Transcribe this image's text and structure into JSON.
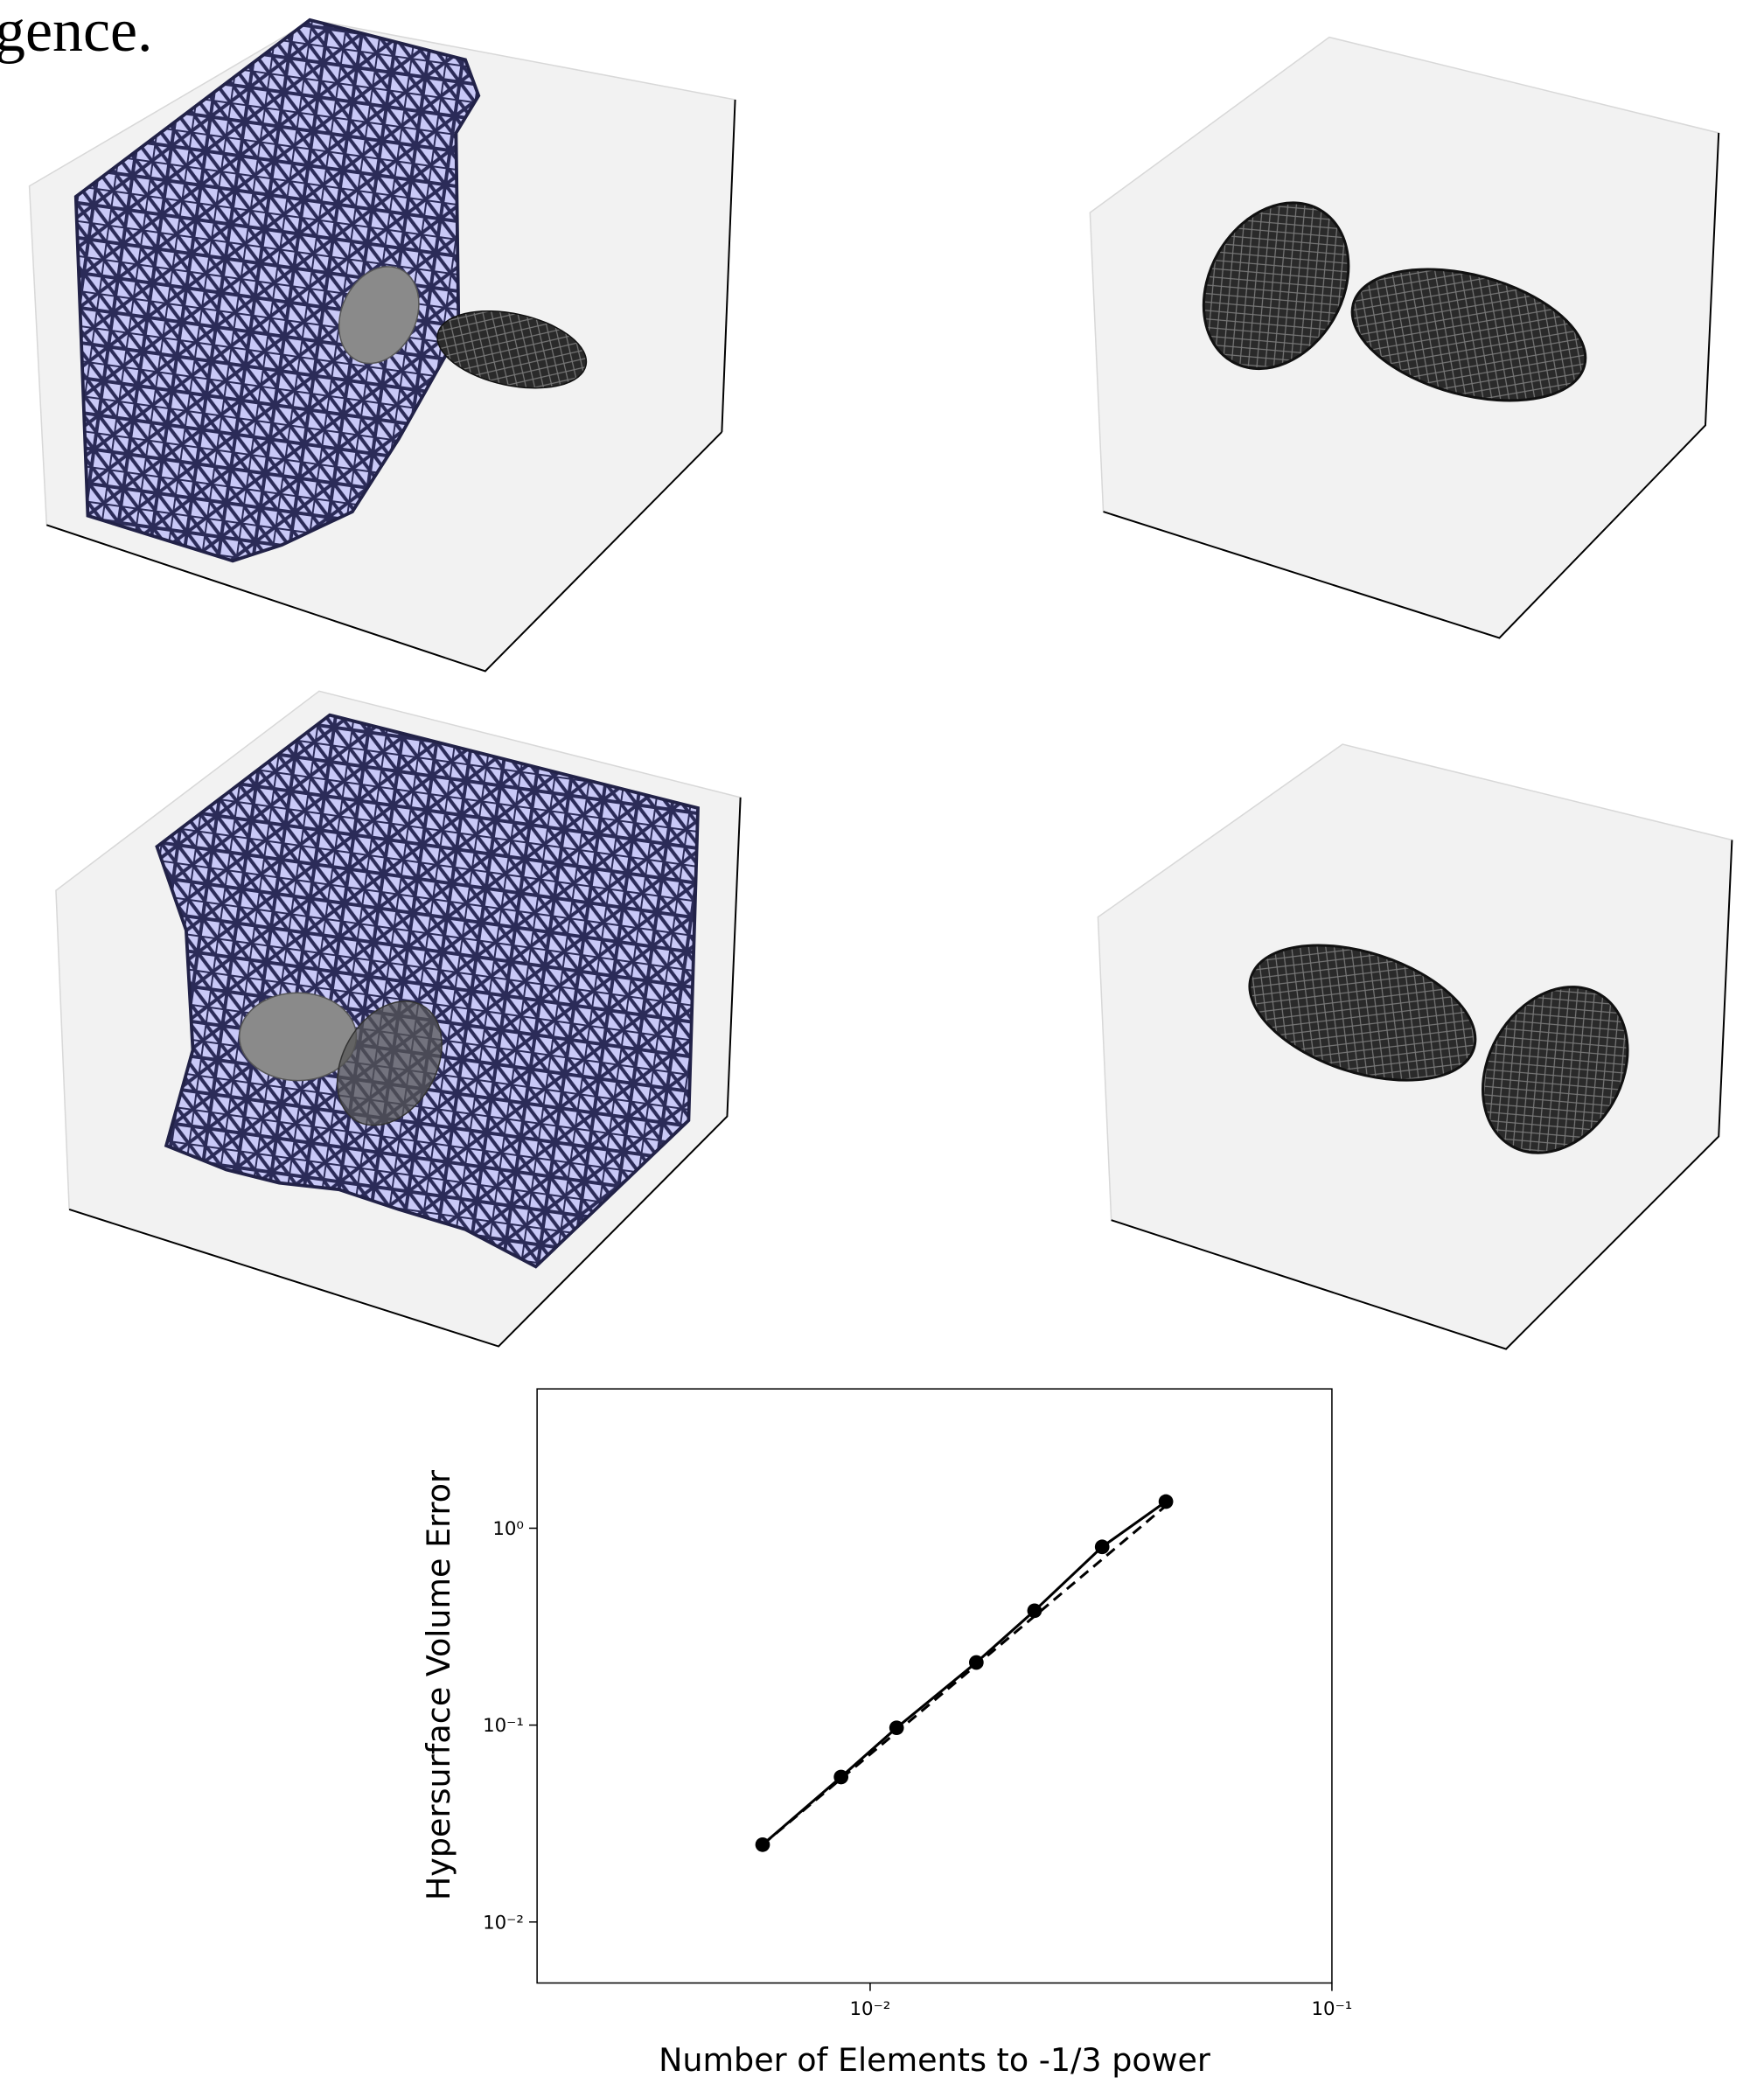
{
  "header_fragment": "gence.",
  "chart_data": {
    "type": "line",
    "log_x": true,
    "log_y": true,
    "xlabel": "Number of Elements to -1/3 power",
    "ylabel": "Hypersurface Volume Error",
    "xlim": [
      0.0019,
      0.1
    ],
    "ylim": [
      0.0049,
      5.1
    ],
    "xticks": [
      {
        "value": 0.01,
        "label": "10⁻²"
      },
      {
        "value": 0.1,
        "label": "10⁻¹"
      }
    ],
    "yticks": [
      {
        "value": 0.01,
        "label": "10⁻²"
      },
      {
        "value": 0.1,
        "label": "10⁻¹"
      },
      {
        "value": 1,
        "label": "10⁰"
      }
    ],
    "series": [
      {
        "color": "#000000",
        "marker": true,
        "dashed": false,
        "x": [
          0.00585,
          0.00865,
          0.01141,
          0.01698,
          0.0227,
          0.0318,
          0.0437
        ],
        "values": [
          0.0247,
          0.0545,
          0.0969,
          0.208,
          0.381,
          0.804,
          1.365
        ]
      },
      {
        "color": "#000000",
        "marker": false,
        "dashed": true,
        "x": [
          0.00585,
          0.0437
        ],
        "values": [
          0.0247,
          1.3
        ]
      }
    ]
  }
}
